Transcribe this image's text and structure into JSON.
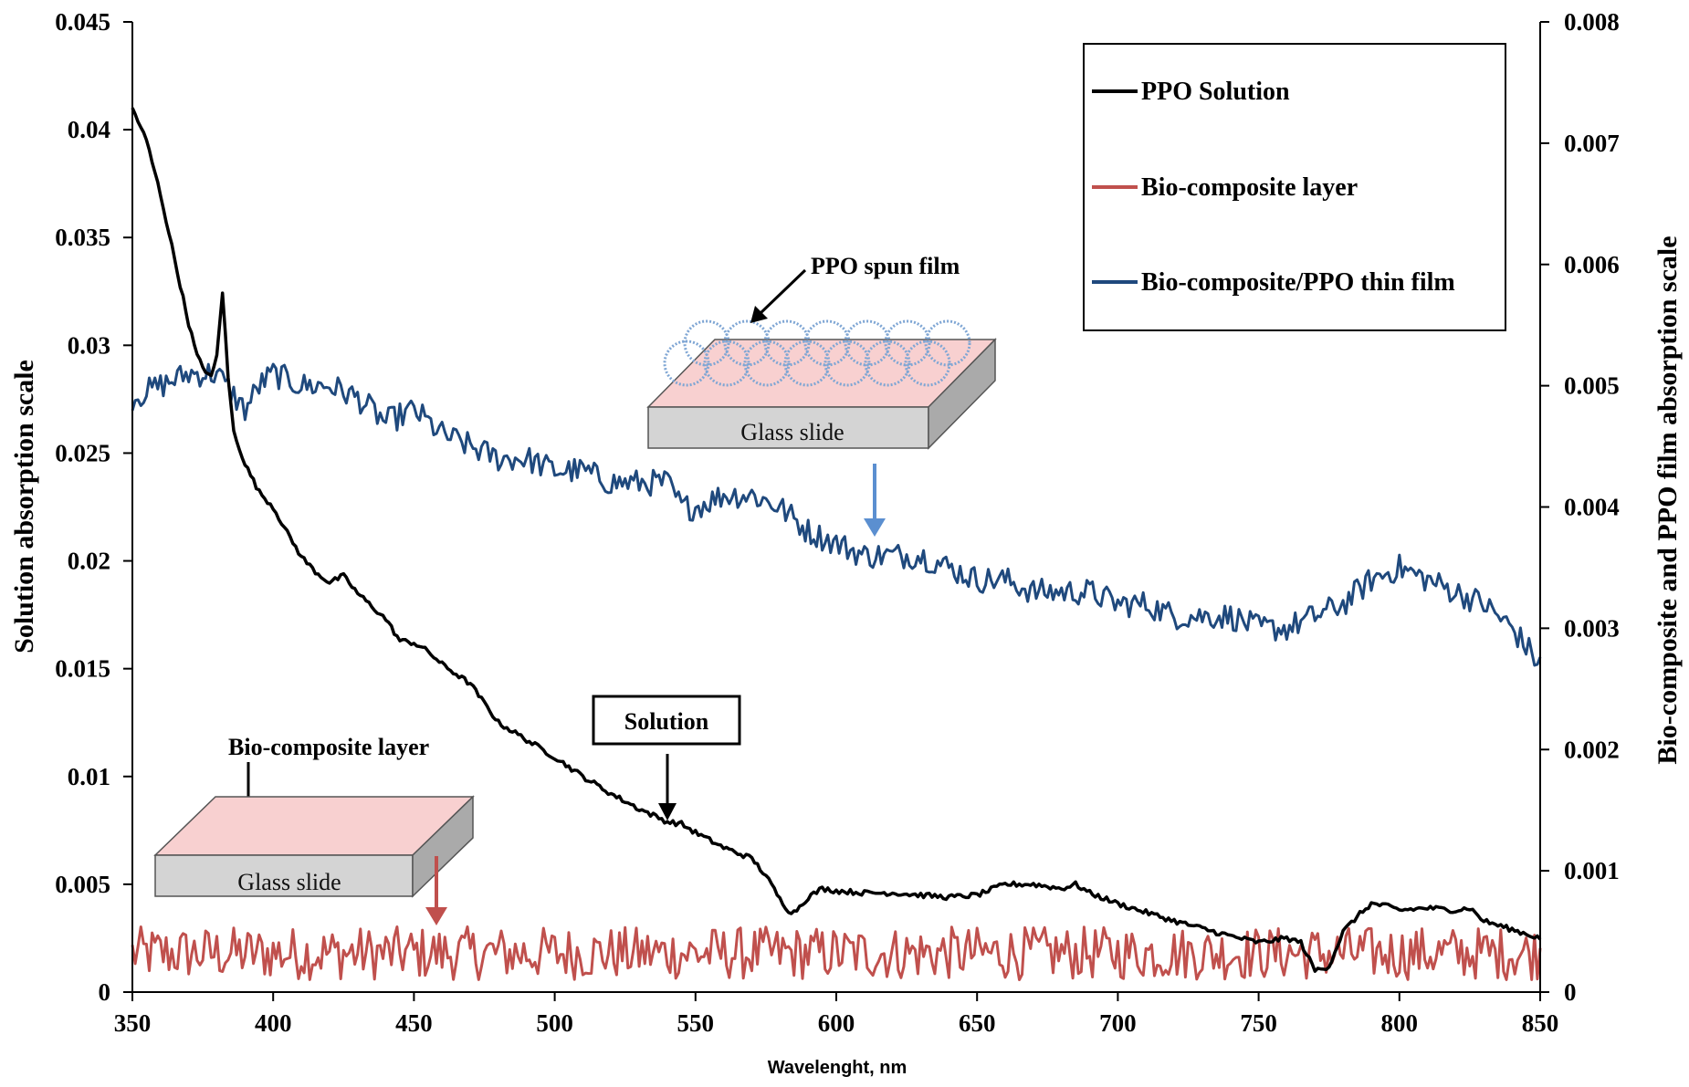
{
  "chart_data": {
    "type": "line",
    "xlabel": "Wavelenght, nm",
    "ylabel_left": "Solution absorption scale",
    "ylabel_right": "Bio-composite and PPO film absorption scale",
    "xlim": [
      350,
      850
    ],
    "ylim_left": [
      0,
      0.045
    ],
    "ylim_right": [
      0,
      0.008
    ],
    "x_ticks": [
      "350",
      "400",
      "450",
      "500",
      "550",
      "600",
      "650",
      "700",
      "750",
      "800",
      "850"
    ],
    "y_ticks_left": [
      "0",
      "0.005",
      "0.01",
      "0.015",
      "0.02",
      "0.025",
      "0.03",
      "0.035",
      "0.04",
      "0.045"
    ],
    "y_ticks_right": [
      "0",
      "0.001",
      "0.002",
      "0.003",
      "0.004",
      "0.005",
      "0.006",
      "0.007",
      "0.008"
    ],
    "grid": false,
    "legend_position": "top-right",
    "series": [
      {
        "name": "PPO Solution",
        "axis": "left",
        "color": "#000000",
        "x": [
          350,
          355,
          360,
          365,
          370,
          373,
          375,
          378,
          380,
          382,
          384,
          386,
          390,
          395,
          400,
          405,
          410,
          415,
          420,
          425,
          430,
          440,
          445,
          450,
          455,
          460,
          470,
          480,
          490,
          500,
          510,
          520,
          530,
          540,
          545,
          550,
          560,
          570,
          575,
          580,
          583,
          585,
          590,
          595,
          600,
          610,
          620,
          630,
          640,
          650,
          660,
          670,
          680,
          685,
          690,
          700,
          720,
          740,
          750,
          760,
          765,
          770,
          775,
          780,
          785,
          790,
          795,
          800,
          810,
          820,
          825,
          830,
          840,
          850
        ],
        "y": [
          0.041,
          0.0395,
          0.037,
          0.034,
          0.031,
          0.0295,
          0.029,
          0.0285,
          0.0295,
          0.0325,
          0.0285,
          0.026,
          0.0245,
          0.0232,
          0.0225,
          0.0213,
          0.0202,
          0.0195,
          0.019,
          0.0193,
          0.0185,
          0.0173,
          0.0163,
          0.0162,
          0.0158,
          0.0152,
          0.0143,
          0.0125,
          0.0117,
          0.0109,
          0.01,
          0.0092,
          0.0085,
          0.0079,
          0.0078,
          0.0074,
          0.0067,
          0.0062,
          0.0054,
          0.0043,
          0.0038,
          0.0037,
          0.0044,
          0.0048,
          0.0047,
          0.0046,
          0.0046,
          0.0045,
          0.0044,
          0.0045,
          0.005,
          0.005,
          0.0048,
          0.005,
          0.0046,
          0.0041,
          0.0033,
          0.0026,
          0.0023,
          0.0025,
          0.0023,
          0.001,
          0.0012,
          0.0028,
          0.0035,
          0.0041,
          0.004,
          0.0038,
          0.0039,
          0.0038,
          0.0039,
          0.0033,
          0.0029,
          0.0025
        ]
      },
      {
        "name": "Bio-composite layer",
        "axis": "right",
        "color": "#c0504d",
        "x": [
          350,
          850
        ],
        "y": [
          0.00032,
          0.00032
        ]
      },
      {
        "name": "Bio-composite/PPO thin film",
        "axis": "right",
        "color": "#1f497d",
        "x": [
          350,
          360,
          370,
          380,
          390,
          395,
          400,
          410,
          420,
          430,
          440,
          450,
          455,
          460,
          470,
          480,
          490,
          500,
          510,
          520,
          530,
          540,
          545,
          550,
          560,
          570,
          580,
          590,
          600,
          610,
          620,
          630,
          640,
          650,
          660,
          670,
          680,
          690,
          700,
          710,
          720,
          730,
          740,
          750,
          760,
          770,
          780,
          790,
          800,
          810,
          820,
          830,
          840,
          850
        ],
        "y": [
          0.0049,
          0.005,
          0.0051,
          0.0051,
          0.0048,
          0.005,
          0.0051,
          0.005,
          0.005,
          0.0049,
          0.0047,
          0.0048,
          0.0047,
          0.0046,
          0.0045,
          0.0044,
          0.0044,
          0.0043,
          0.0043,
          0.0042,
          0.0042,
          0.0042,
          0.004,
          0.004,
          0.0041,
          0.0041,
          0.004,
          0.0038,
          0.0037,
          0.0036,
          0.0036,
          0.0036,
          0.0035,
          0.0034,
          0.0034,
          0.0033,
          0.0033,
          0.0033,
          0.0032,
          0.0032,
          0.0031,
          0.0031,
          0.0031,
          0.003,
          0.003,
          0.0031,
          0.0032,
          0.0034,
          0.0035,
          0.0034,
          0.0033,
          0.0032,
          0.003,
          0.0027
        ]
      }
    ]
  },
  "annotations": {
    "ppo_spun_film": "PPO spun film",
    "solution": "Solution",
    "bio_composite_layer": "Bio-composite layer",
    "glass_slide_right": "Glass slide",
    "glass_slide_left": "Glass slide"
  },
  "colors": {
    "axis": "#000000",
    "slide_top": "#f8d0d0",
    "slide_front": "#d4d4d4",
    "slide_side": "#aaaaaa",
    "rings": "#7fa6d4"
  }
}
